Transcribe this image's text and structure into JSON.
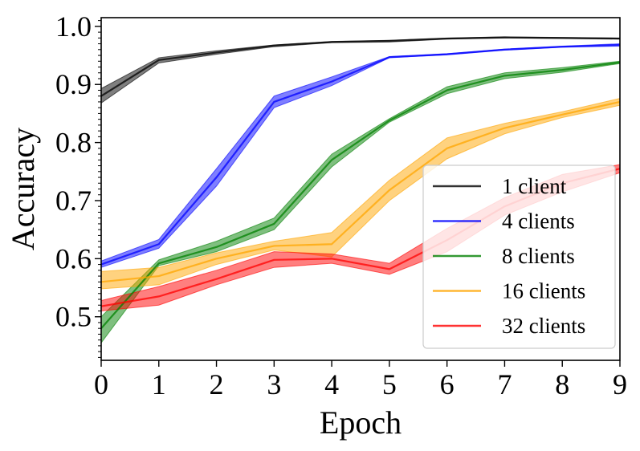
{
  "chart_data": {
    "type": "line",
    "title": "",
    "xlabel": "Epoch",
    "ylabel": "Accuracy",
    "xlim": [
      0,
      9
    ],
    "ylim": [
      0.425,
      1.015
    ],
    "x_ticks": [
      "0",
      "1",
      "2",
      "3",
      "4",
      "5",
      "6",
      "7",
      "8",
      "9"
    ],
    "y_ticks": [
      {
        "value": 0.5,
        "label": "0.5"
      },
      {
        "value": 0.6,
        "label": "0.6"
      },
      {
        "value": 0.7,
        "label": "0.7"
      },
      {
        "value": 0.8,
        "label": "0.8"
      },
      {
        "value": 0.9,
        "label": "0.9"
      },
      {
        "value": 1.0,
        "label": "1.0"
      }
    ],
    "grid": false,
    "legend_position": "lower-right",
    "x": [
      0,
      1,
      2,
      3,
      4,
      5,
      6,
      7,
      8,
      9
    ],
    "series": [
      {
        "name": "1 client",
        "color": "#000000",
        "values": [
          0.88,
          0.942,
          0.955,
          0.967,
          0.973,
          0.975,
          0.979,
          0.981,
          0.98,
          0.979
        ],
        "lower": [
          0.868,
          0.937,
          0.952,
          0.965,
          0.972,
          0.973,
          0.978,
          0.98,
          0.979,
          0.978
        ],
        "upper": [
          0.893,
          0.946,
          0.958,
          0.968,
          0.974,
          0.976,
          0.98,
          0.982,
          0.981,
          0.98
        ]
      },
      {
        "name": "4 clients",
        "color": "#0000ff",
        "values": [
          0.59,
          0.625,
          0.74,
          0.87,
          0.905,
          0.947,
          0.952,
          0.96,
          0.965,
          0.968
        ],
        "lower": [
          0.585,
          0.618,
          0.725,
          0.86,
          0.898,
          0.946,
          0.951,
          0.959,
          0.964,
          0.966
        ],
        "upper": [
          0.596,
          0.633,
          0.755,
          0.88,
          0.913,
          0.948,
          0.953,
          0.961,
          0.966,
          0.97
        ]
      },
      {
        "name": "8 clients",
        "color": "#008000",
        "values": [
          0.48,
          0.592,
          0.62,
          0.66,
          0.77,
          0.838,
          0.89,
          0.915,
          0.925,
          0.938
        ],
        "lower": [
          0.455,
          0.588,
          0.612,
          0.65,
          0.758,
          0.835,
          0.884,
          0.91,
          0.921,
          0.936
        ],
        "upper": [
          0.5,
          0.598,
          0.63,
          0.67,
          0.78,
          0.841,
          0.896,
          0.92,
          0.929,
          0.94
        ]
      },
      {
        "name": "16 clients",
        "color": "#ffa500",
        "values": [
          0.56,
          0.57,
          0.6,
          0.622,
          0.625,
          0.718,
          0.79,
          0.825,
          0.848,
          0.87
        ],
        "lower": [
          0.548,
          0.555,
          0.59,
          0.615,
          0.603,
          0.7,
          0.772,
          0.815,
          0.843,
          0.864
        ],
        "upper": [
          0.578,
          0.585,
          0.61,
          0.63,
          0.645,
          0.735,
          0.808,
          0.833,
          0.853,
          0.876
        ]
      },
      {
        "name": "32 clients",
        "color": "#ff0000",
        "values": [
          0.518,
          0.535,
          0.565,
          0.598,
          0.6,
          0.582,
          0.632,
          0.69,
          0.73,
          0.755
        ],
        "lower": [
          0.51,
          0.52,
          0.555,
          0.585,
          0.592,
          0.573,
          0.612,
          0.675,
          0.715,
          0.748
        ],
        "upper": [
          0.528,
          0.552,
          0.58,
          0.612,
          0.608,
          0.592,
          0.652,
          0.705,
          0.745,
          0.762
        ]
      }
    ]
  }
}
